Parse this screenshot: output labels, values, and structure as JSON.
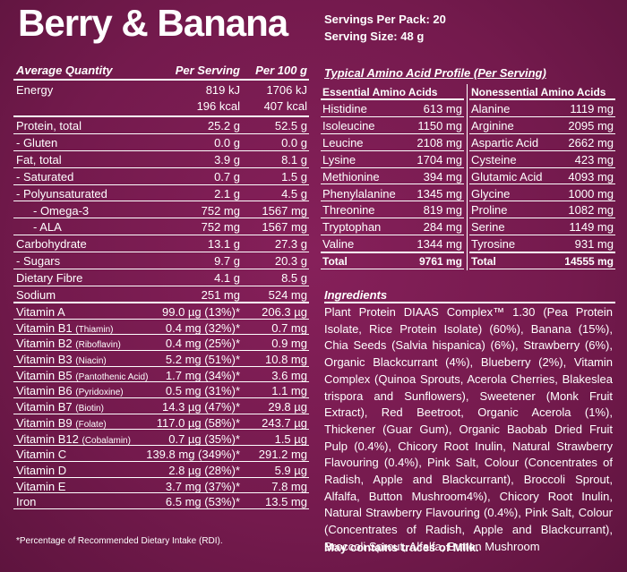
{
  "header": {
    "title": "Berry & Banana",
    "servings_per_pack": "Servings Per Pack: 20",
    "serving_size": "Serving Size: 48 g"
  },
  "nutrition": {
    "columns": [
      "Average Quantity",
      "Per Serving",
      "Per 100 g"
    ],
    "rows": [
      {
        "label": "Energy",
        "serving": [
          "819 kJ",
          "196 kcal"
        ],
        "per_100g": [
          "1706 kJ",
          "407 kcal"
        ]
      },
      {
        "label": "Protein, total",
        "serving": "25.2 g",
        "per_100g": "52.5 g"
      },
      {
        "label": "- Gluten",
        "serving": "0.0 g",
        "per_100g": "0.0 g"
      },
      {
        "label": "Fat, total",
        "serving": "3.9 g",
        "per_100g": "8.1 g"
      },
      {
        "label": "- Saturated",
        "serving": "0.7 g",
        "per_100g": "1.5 g"
      },
      {
        "label": "- Polyunsaturated",
        "serving": "2.1 g",
        "per_100g": "4.5 g"
      },
      {
        "label": "- Omega-3",
        "serving": "752 mg",
        "per_100g": "1567 mg"
      },
      {
        "label": "- ALA",
        "serving": "752 mg",
        "per_100g": "1567 mg"
      },
      {
        "label": "Carbohydrate",
        "serving": "13.1 g",
        "per_100g": "27.3 g"
      },
      {
        "label": "- Sugars",
        "serving": "9.7 g",
        "per_100g": "20.3 g"
      },
      {
        "label": "Dietary Fibre",
        "serving": "4.1 g",
        "per_100g": "8.5 g"
      },
      {
        "label": "Sodium",
        "serving": "251 mg",
        "per_100g": "524 mg"
      },
      {
        "label": "Vitamin A",
        "serving": "99.0 µg (13%)*",
        "per_100g": "206.3 µg"
      },
      {
        "label": "Vitamin B1",
        "note": "(Thiamin)",
        "serving": "0.4 mg (32%)*",
        "per_100g": "0.7 mg"
      },
      {
        "label": "Vitamin B2",
        "note": "(Riboflavin)",
        "serving": "0.4 mg (25%)*",
        "per_100g": "0.9 mg"
      },
      {
        "label": "Vitamin B3",
        "note": "(Niacin)",
        "serving": "5.2 mg (51%)*",
        "per_100g": "10.8 mg"
      },
      {
        "label": "Vitamin B5",
        "note": "(Pantothenic Acid)",
        "serving": "1.7 mg (34%)*",
        "per_100g": "3.6 mg"
      },
      {
        "label": "Vitamin B6",
        "note": "(Pyridoxine)",
        "serving": "0.5 mg (31%)*",
        "per_100g": "1.1 mg"
      },
      {
        "label": "Vitamin B7",
        "note": "(Biotin)",
        "serving": "14.3 µg (47%)*",
        "per_100g": "29.8 µg"
      },
      {
        "label": "Vitamin B9",
        "note": "(Folate)",
        "serving": "117.0 µg (58%)*",
        "per_100g": "243.7 µg"
      },
      {
        "label": "Vitamin B12",
        "note": "(Cobalamin)",
        "serving": "0.7 µg (35%)*",
        "per_100g": "1.5 µg"
      },
      {
        "label": "Vitamin C",
        "serving": "139.8 mg (349%)*",
        "per_100g": "291.2 mg"
      },
      {
        "label": "Vitamin D",
        "serving": "2.8 µg (28%)*",
        "per_100g": "5.9 µg"
      },
      {
        "label": "Vitamin E",
        "serving": "3.7 mg (37%)*",
        "per_100g": "7.8 mg"
      },
      {
        "label": "Iron",
        "serving": "6.5 mg (53%)*",
        "per_100g": "13.5 mg"
      }
    ],
    "footnote": "*Percentage of Recommended Dietary Intake (RDI)."
  },
  "amino": {
    "title": "Typical Amino Acid Profile (Per Serving)",
    "columns": [
      "Essential Amino Acids",
      "Nonessential Amino Acids"
    ],
    "rows": [
      [
        "Histidine",
        "613 mg",
        "Alanine",
        "1119 mg"
      ],
      [
        "Isoleucine",
        "1150 mg",
        "Arginine",
        "2095 mg"
      ],
      [
        "Leucine",
        "2108 mg",
        "Aspartic Acid",
        "2662 mg"
      ],
      [
        "Lysine",
        "1704 mg",
        "Cysteine",
        "423 mg"
      ],
      [
        "Methionine",
        "394 mg",
        "Glutamic Acid",
        "4093 mg"
      ],
      [
        "Phenylalanine",
        "1345 mg",
        "Glycine",
        "1000 mg"
      ],
      [
        "Threonine",
        "819 mg",
        "Proline",
        "1082 mg"
      ],
      [
        "Tryptophan",
        "284 mg",
        "Serine",
        "1149 mg"
      ],
      [
        "Valine",
        "1344 mg",
        "Tyrosine",
        "931 mg"
      ],
      [
        "Total",
        "9761 mg",
        "Total",
        "14555 mg"
      ]
    ]
  },
  "ingredients": {
    "title": "Ingredients",
    "text": "Plant Protein DIAAS Complex™ 1.30 (Pea Protein Isolate, Rice Protein Isolate) (60%), Banana (15%), Chia Seeds (Salvia hispanica) (6%), Strawberry (6%), Organic Blackcurrant (4%), Blueberry (2%), Vitamin Complex (Quinoa Sprouts, Acerola Cherries, Blakeslea trispora and Sunflowers), Sweetener (Monk Fruit Extract), Red Beetroot, Organic Acerola (1%), Thickener (Guar Gum), Organic Baobab Dried Fruit Pulp (0.4%), Chicory Root Inulin, Natural Strawberry Flavouring (0.4%), Pink Salt, Colour (Concentrates of Radish, Apple and Blackcurrant), Broccoli Sprout, Alfalfa, Button Mushroom4%), Chicory Root Inulin, Natural Strawberry Flavouring (0.4%), Pink Salt, Colour (Concentrates of Radish, Apple and Blackcurrant), Broccoli Sprout, Alfalfa, Button Mushroom",
    "traces": "May contains traces of Milk."
  }
}
